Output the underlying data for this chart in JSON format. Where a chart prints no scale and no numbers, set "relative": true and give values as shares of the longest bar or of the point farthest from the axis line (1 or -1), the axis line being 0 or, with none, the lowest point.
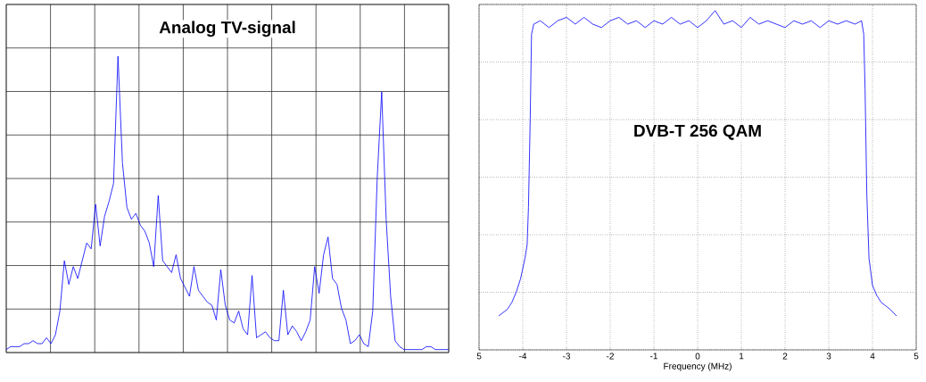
{
  "chart_data": [
    {
      "type": "line",
      "title": "Analog TV-signal",
      "relative": true,
      "grid": true,
      "tick_labels": false,
      "color": "#0000ff",
      "categories": [
        null,
        null,
        null,
        null,
        null,
        null,
        null,
        null,
        null,
        null,
        null,
        null,
        null,
        null,
        null,
        null,
        null,
        null,
        null,
        null,
        null,
        null,
        null,
        null,
        null,
        null,
        null,
        null,
        null,
        null,
        null,
        null,
        null,
        null,
        null,
        null,
        null,
        null,
        null,
        null,
        null,
        null,
        null,
        null,
        null,
        null,
        null,
        null,
        null,
        null,
        null,
        null,
        null,
        null,
        null,
        null,
        null,
        null,
        null,
        null,
        null,
        null,
        null,
        null,
        null,
        null,
        null,
        null,
        null,
        null,
        null,
        null,
        null,
        null,
        null,
        null,
        null,
        null,
        null,
        null,
        null,
        null,
        null,
        null,
        null,
        null,
        null,
        null,
        null,
        null,
        null,
        null,
        null,
        null,
        null,
        null,
        null,
        null,
        null,
        null
      ],
      "values": [
        0.01,
        0.02,
        0.02,
        0.02,
        0.03,
        0.03,
        0.04,
        0.03,
        0.03,
        0.05,
        0.03,
        0.06,
        0.14,
        0.31,
        0.23,
        0.29,
        0.25,
        0.31,
        0.37,
        0.35,
        0.5,
        0.36,
        0.46,
        0.51,
        0.57,
        1,
        0.64,
        0.49,
        0.45,
        0.47,
        0.43,
        0.41,
        0.37,
        0.29,
        0.53,
        0.31,
        0.29,
        0.27,
        0.33,
        0.25,
        0.22,
        0.19,
        0.29,
        0.21,
        0.19,
        0.17,
        0.16,
        0.11,
        0.28,
        0.16,
        0.11,
        0.1,
        0.14,
        0.08,
        0.06,
        0.26,
        0.05,
        0.06,
        0.07,
        0.05,
        0.04,
        0.04,
        0.21,
        0.06,
        0.09,
        0.07,
        0.04,
        0.07,
        0.11,
        0.29,
        0.2,
        0.33,
        0.39,
        0.25,
        0.23,
        0.15,
        0.11,
        0.03,
        0.04,
        0.06,
        0.03,
        0.02,
        0.14,
        0.59,
        0.88,
        0.45,
        0.19,
        0.04,
        0.02,
        0.01,
        0.01,
        0.01,
        0.01,
        0.01,
        0.02,
        0.02,
        0.01,
        0.01,
        0.01,
        0.01
      ]
    },
    {
      "type": "line",
      "title": "DVB-T 256 QAM",
      "xlabel": "Frequency (MHz)",
      "relative": true,
      "grid": true,
      "tick_labels": "x",
      "color": "#0000ff",
      "xlim": [
        -5,
        5
      ],
      "xticks": [
        {
          "value": -5,
          "label": "5"
        },
        -4,
        -3,
        -2,
        -1,
        0,
        1,
        2,
        3,
        4,
        5
      ],
      "x": [
        -4.55,
        -4.45,
        -4.35,
        -4.25,
        -4.15,
        -4.05,
        -3.95,
        -3.9,
        -3.87,
        -3.83,
        -3.8,
        -3.75,
        -3.6,
        -3.4,
        -3.2,
        -3.0,
        -2.8,
        -2.6,
        -2.4,
        -2.2,
        -2.0,
        -1.8,
        -1.6,
        -1.4,
        -1.2,
        -1.0,
        -0.8,
        -0.6,
        -0.4,
        -0.2,
        0.0,
        0.2,
        0.4,
        0.6,
        0.8,
        1.0,
        1.2,
        1.4,
        1.6,
        1.8,
        2.0,
        2.2,
        2.4,
        2.6,
        2.8,
        3.0,
        3.2,
        3.4,
        3.6,
        3.75,
        3.8,
        3.83,
        3.87,
        3.92,
        4.0,
        4.1,
        4.2,
        4.3,
        4.4,
        4.55
      ],
      "values": [
        0.1,
        0.11,
        0.12,
        0.14,
        0.17,
        0.21,
        0.27,
        0.31,
        0.42,
        0.68,
        0.93,
        0.96,
        0.97,
        0.95,
        0.97,
        0.98,
        0.96,
        0.98,
        0.96,
        0.95,
        0.97,
        0.98,
        0.96,
        0.97,
        0.95,
        0.97,
        0.96,
        0.98,
        0.96,
        0.97,
        0.95,
        0.97,
        1,
        0.96,
        0.97,
        0.95,
        0.98,
        0.96,
        0.97,
        0.96,
        0.95,
        0.97,
        0.96,
        0.97,
        0.95,
        0.97,
        0.96,
        0.97,
        0.96,
        0.97,
        0.93,
        0.77,
        0.46,
        0.27,
        0.19,
        0.16,
        0.14,
        0.13,
        0.12,
        0.1
      ]
    }
  ]
}
